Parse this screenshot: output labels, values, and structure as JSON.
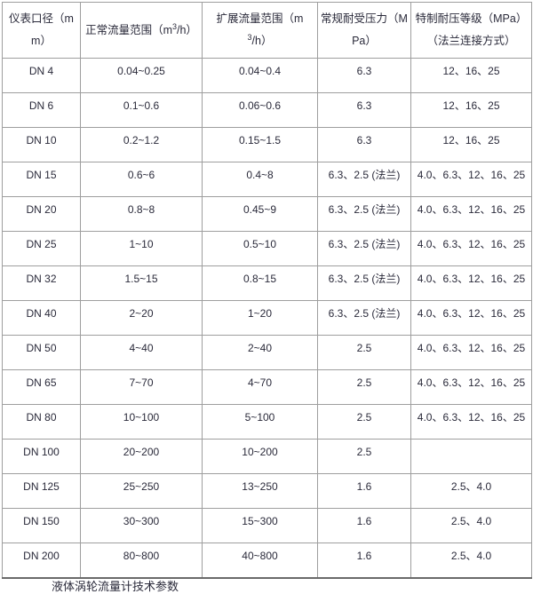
{
  "table": {
    "columns": [
      {
        "label": "仪表口径（mm）"
      },
      {
        "label_pre": "正常流量范围（m",
        "label_sup": "3",
        "label_post": "/h）"
      },
      {
        "label_pre": "扩展流量范围（m",
        "label_sup": "3",
        "label_post": "/h）"
      },
      {
        "label": "常规耐受压力（MPa）"
      },
      {
        "label": "特制耐压等级（MPa）（法兰连接方式）"
      }
    ],
    "rows": [
      [
        "DN 4",
        "0.04~0.25",
        "0.04~0.4",
        "6.3",
        "12、16、25"
      ],
      [
        "DN 6",
        "0.1~0.6",
        "0.06~0.6",
        "6.3",
        "12、16、25"
      ],
      [
        "DN 10",
        "0.2~1.2",
        "0.15~1.5",
        "6.3",
        "12、16、25"
      ],
      [
        "DN 15",
        "0.6~6",
        "0.4~8",
        "6.3、2.5 (法兰)",
        "4.0、6.3、12、16、25"
      ],
      [
        "DN 20",
        "0.8~8",
        "0.45~9",
        "6.3、2.5 (法兰)",
        "4.0、6.3、12、16、25"
      ],
      [
        "DN 25",
        "1~10",
        "0.5~10",
        "6.3、2.5 (法兰)",
        "4.0、6.3、12、16、25"
      ],
      [
        "DN 32",
        "1.5~15",
        "0.8~15",
        "6.3、2.5 (法兰)",
        "4.0、6.3、12、16、25"
      ],
      [
        "DN 40",
        "2~20",
        "1~20",
        "6.3、2.5 (法兰)",
        "4.0、6.3、12、16、25"
      ],
      [
        "DN 50",
        "4~40",
        "2~40",
        "2.5",
        "4.0、6.3、12、16、25"
      ],
      [
        "DN 65",
        "7~70",
        "4~70",
        "2.5",
        "4.0、6.3、12、16、25"
      ],
      [
        "DN 80",
        "10~100",
        "5~100",
        "2.5",
        "4.0、6.3、12、16、25"
      ],
      [
        "DN 100",
        "20~200",
        "10~200",
        "2.5",
        ""
      ],
      [
        "DN 125",
        "25~250",
        "13~250",
        "1.6",
        "2.5、4.0"
      ],
      [
        "DN 150",
        "30~300",
        "15~300",
        "1.6",
        "2.5、4.0"
      ],
      [
        "DN 200",
        "80~800",
        "40~800",
        "1.6",
        "2.5、4.0"
      ]
    ]
  },
  "footer": {
    "clipped_caption_text": "液体涡轮流量计技术参数"
  },
  "colors": {
    "text": "#2a2a3a",
    "grid_border": "#9e9e9e",
    "outer_border": "#8f8f8f",
    "background": "#ffffff"
  }
}
